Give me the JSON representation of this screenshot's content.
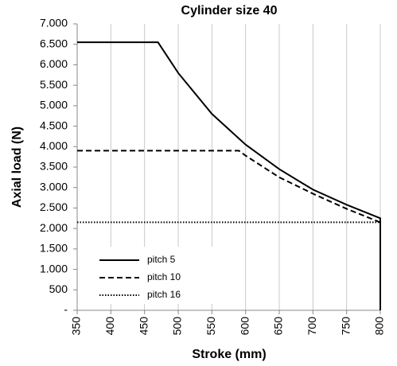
{
  "chart_data": {
    "type": "line",
    "title": "Cylinder size 40",
    "x_label": "Stroke (mm)",
    "y_label": "Axial load (N)",
    "xlim": [
      350,
      800
    ],
    "xticks": [
      350,
      400,
      450,
      500,
      550,
      600,
      650,
      700,
      750,
      800
    ],
    "ylim": [
      0,
      7000
    ],
    "yticks": [
      {
        "value": 0,
        "label": "-"
      },
      500,
      {
        "value": 1000,
        "label": "1.000"
      },
      {
        "value": 1500,
        "label": "1.500"
      },
      {
        "value": 2000,
        "label": "2.000"
      },
      {
        "value": 2500,
        "label": "2.500"
      },
      {
        "value": 3000,
        "label": "3.000"
      },
      {
        "value": 3500,
        "label": "3.500"
      },
      {
        "value": 4000,
        "label": "4.000"
      },
      {
        "value": 4500,
        "label": "4.500"
      },
      {
        "value": 5000,
        "label": "5.000"
      },
      {
        "value": 5500,
        "label": "5.500"
      },
      {
        "value": 6000,
        "label": "6.000"
      },
      {
        "value": 6500,
        "label": "6.500"
      },
      {
        "value": 7000,
        "label": "7.000"
      }
    ],
    "grid": "x",
    "legend": "lower left",
    "series": [
      {
        "name": "pitch 5",
        "color": "#000000",
        "dash": "solid",
        "x": [
          350,
          470,
          500,
          550,
          600,
          650,
          700,
          750,
          800,
          800
        ],
        "values": [
          6550,
          6550,
          5800,
          4800,
          4050,
          3450,
          2950,
          2580,
          2250,
          0
        ]
      },
      {
        "name": "pitch 10",
        "color": "#000000",
        "dash": "dashed",
        "x": [
          350,
          590,
          600,
          650,
          700,
          750,
          800
        ],
        "values": [
          3900,
          3900,
          3780,
          3250,
          2850,
          2480,
          2150
        ]
      },
      {
        "name": "pitch 16",
        "color": "#000000",
        "dash": "dotted",
        "x": [
          350,
          800
        ],
        "values": [
          2150,
          2150
        ]
      }
    ]
  }
}
